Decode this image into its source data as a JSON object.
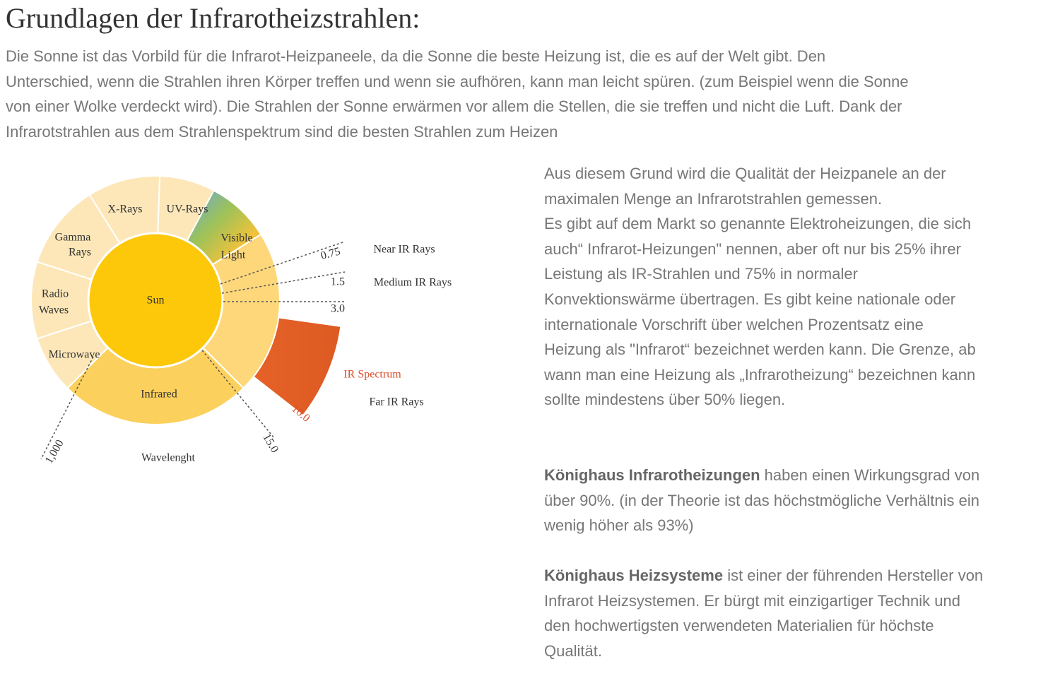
{
  "header": {
    "title": "Grundlagen der Infrarotheizstrahlen:"
  },
  "intro": {
    "lines": [
      "Die Sonne ist das Vorbild für die Infrarot-Heizpaneele, da die Sonne die beste Heizung ist, die es auf der Welt gibt.  Den",
      "Unterschied, wenn die Strahlen ihren Körper treffen und wenn sie aufhören, kann man leicht spüren. (zum Beispiel wenn die Sonne",
      "von einer Wolke verdeckt wird). Die Strahlen der Sonne  erwärmen vor allem die Stellen, die sie treffen und  nicht die Luft. Dank der",
      " Infrarotstrahlen aus dem Strahlenspektrum sind die besten Strahlen zum Heizen"
    ]
  },
  "diagram": {
    "center": "Sun",
    "segments": [
      [
        "X-Rays"
      ],
      [
        "UV-Rays"
      ],
      [
        "Visible",
        "Light"
      ],
      [
        "Gamma",
        "Rays"
      ],
      [
        "Radio",
        "Waves"
      ],
      [
        "Microwave"
      ],
      [
        "Infrared"
      ]
    ],
    "markers": [
      "0.75",
      "1.5",
      "3.0",
      "10.0",
      "15.0",
      "1,000"
    ],
    "bands": [
      "Near IR Rays",
      "Medium IR Rays",
      "Far IR Rays"
    ],
    "spectrum": "IR Spectrum",
    "axis": "Wavelenght"
  },
  "content": {
    "paragraph1": [
      "Aus diesem Grund wird die Qualität der Heizpanele an der",
      "maximalen Menge an Infrarotstrahlen gemessen.",
      "Es gibt auf dem Markt so genannte Elektroheizungen, die sich",
      "auch“ Infrarot-Heizungen\" nennen, aber oft nur bis 25% ihrer",
      "Leistung als IR-Strahlen und 75% in normaler",
      "Konvektionswärme übertragen.  Es gibt keine nationale oder",
      "internationale Vorschrift über welchen Prozentsatz eine",
      "Heizung  als \"Infrarot“  bezeichnet werden kann. Die Grenze, ab",
      "wann man eine Heizung als „Infrarotheizung“ bezeichnen kann",
      "sollte mindestens über 50% liegen."
    ],
    "paragraph2": {
      "bold": "Könighaus Infrarotheizungen",
      "lines": [
        " haben einen Wirkungsgrad von",
        "über 90%. (in der Theorie ist das höchstmögliche Verhältnis ein",
        "wenig höher als 93%)"
      ]
    },
    "paragraph3": {
      "bold": "Könighaus Heizsysteme",
      "lines": [
        " ist einer der führenden Hersteller von",
        "Infrarot Heizsystemen. Er bürgt mit einzigartiger Technik und",
        "den hochwertigsten verwendeten Materialien für höchste",
        "Qualität."
      ]
    }
  }
}
